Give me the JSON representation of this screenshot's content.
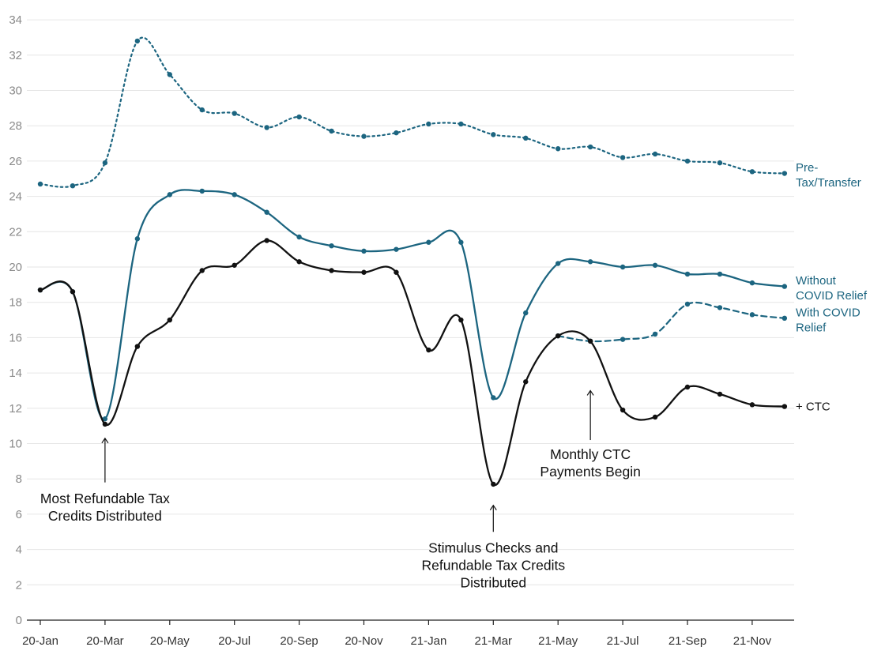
{
  "chart_data": {
    "type": "line",
    "x": [
      "20-Jan",
      "20-Feb",
      "20-Mar",
      "20-Apr",
      "20-May",
      "20-Jun",
      "20-Jul",
      "20-Aug",
      "20-Sep",
      "20-Oct",
      "20-Nov",
      "20-Dec",
      "21-Jan",
      "21-Feb",
      "21-Mar",
      "21-Apr",
      "21-May",
      "21-Jun",
      "21-Jul",
      "21-Aug",
      "21-Sep",
      "21-Oct",
      "21-Nov",
      "21-Dec"
    ],
    "x_tick_labels": [
      "20-Jan",
      "20-Mar",
      "20-May",
      "20-Jul",
      "20-Sep",
      "20-Nov",
      "21-Jan",
      "21-Mar",
      "21-May",
      "21-Jul",
      "21-Sep",
      "21-Nov"
    ],
    "ylim": [
      0,
      34
    ],
    "y_ticks": [
      0,
      2,
      4,
      6,
      8,
      10,
      12,
      14,
      16,
      18,
      20,
      22,
      24,
      26,
      28,
      30,
      32,
      34
    ],
    "grid": true,
    "series": [
      {
        "name": "Pre-Tax/Transfer",
        "label_lines": [
          "Pre-",
          "Tax/Transfer"
        ],
        "color": "#1c6580",
        "style": "dotted",
        "values": [
          24.7,
          24.6,
          25.9,
          32.8,
          30.9,
          28.9,
          28.7,
          27.9,
          28.5,
          27.7,
          27.4,
          27.6,
          28.1,
          28.1,
          27.5,
          27.3,
          26.7,
          26.8,
          26.2,
          26.4,
          26.0,
          25.9,
          25.4,
          25.3
        ]
      },
      {
        "name": "Without COVID Relief",
        "label_lines": [
          "Without",
          "COVID Relief"
        ],
        "color": "#1c6580",
        "style": "solid",
        "values": [
          18.7,
          18.6,
          11.4,
          21.6,
          24.1,
          24.3,
          24.1,
          23.1,
          21.7,
          21.2,
          20.9,
          21.0,
          21.4,
          21.4,
          12.6,
          17.4,
          20.2,
          20.3,
          20.0,
          20.1,
          19.6,
          19.6,
          19.1,
          18.9
        ]
      },
      {
        "name": "With COVID Relief",
        "label_lines": [
          "With COVID",
          "Relief"
        ],
        "color": "#1c6580",
        "style": "dashed",
        "values": [
          null,
          null,
          null,
          null,
          null,
          null,
          null,
          null,
          null,
          null,
          null,
          null,
          null,
          null,
          null,
          null,
          16.1,
          15.8,
          15.9,
          16.2,
          17.9,
          17.7,
          17.3,
          17.1
        ]
      },
      {
        "name": "+ CTC",
        "label_lines": [
          "+ CTC"
        ],
        "color": "#111111",
        "style": "solid",
        "values": [
          18.7,
          18.6,
          11.1,
          15.5,
          17.0,
          19.8,
          20.1,
          21.5,
          20.3,
          19.8,
          19.7,
          19.7,
          15.3,
          17.0,
          7.7,
          13.5,
          16.1,
          15.8,
          11.9,
          11.5,
          13.2,
          12.8,
          12.2,
          12.1
        ]
      }
    ],
    "annotations": [
      {
        "lines": [
          "Most Refundable Tax",
          "Credits Distributed"
        ],
        "x": "20-Mar",
        "arrow_y": 10.3,
        "arrow_tail_y": 7.8,
        "text_y": 6.85
      },
      {
        "lines": [
          "Stimulus Checks and",
          "Refundable Tax Credits",
          "Distributed"
        ],
        "x": "21-Mar",
        "arrow_y": 6.5,
        "arrow_tail_y": 5.0,
        "text_y": 4.05
      },
      {
        "lines": [
          "Monthly CTC",
          "Payments Begin"
        ],
        "x": "21-Jun",
        "arrow_y": 13.0,
        "arrow_tail_y": 10.2,
        "text_y": 9.35
      }
    ]
  }
}
